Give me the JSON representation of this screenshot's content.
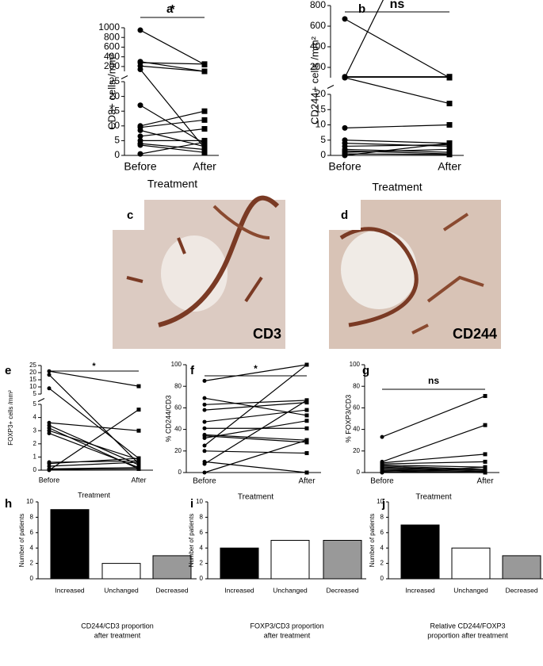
{
  "chart_data": [
    {
      "type": "line",
      "panel": "a",
      "categories": [
        "Before",
        "After"
      ],
      "xlabel": "Treatment",
      "ylabel": "CD3+ cells /mm²",
      "significance": "*",
      "segments": [
        {
          "ylim": [
            0,
            25
          ],
          "yticks": [
            0,
            5,
            10,
            15,
            20,
            25
          ]
        },
        {
          "ylim": [
            100,
            1000
          ],
          "yticks": [
            200,
            400,
            600,
            800,
            1000
          ]
        }
      ],
      "pairs": [
        [
          950,
          240
        ],
        [
          300,
          100
        ],
        [
          280,
          250
        ],
        [
          210,
          100
        ],
        [
          140,
          2.5
        ],
        [
          17,
          4
        ],
        [
          10,
          15
        ],
        [
          9.5,
          12
        ],
        [
          8.5,
          3
        ],
        [
          6.5,
          9
        ],
        [
          5,
          5
        ],
        [
          4,
          2
        ],
        [
          3.5,
          1
        ],
        [
          0.5,
          4.5
        ]
      ]
    },
    {
      "type": "line",
      "panel": "b",
      "categories": [
        "Before",
        "After"
      ],
      "xlabel": "Treatment",
      "ylabel": "CD244+ cells /mm²",
      "significance": "ns",
      "segments": [
        {
          "ylim": [
            0,
            20
          ],
          "yticks": [
            0,
            5,
            10,
            15,
            20
          ]
        },
        {
          "ylim": [
            100,
            800
          ],
          "yticks": [
            200,
            400,
            600,
            800
          ]
        }
      ],
      "pairs": [
        [
          670,
          100
        ],
        [
          110,
          110
        ],
        [
          105,
          105
        ],
        [
          100,
          95
        ],
        [
          100,
          17
        ],
        [
          9,
          10
        ],
        [
          5,
          4
        ],
        [
          4,
          3
        ],
        [
          3,
          3.5
        ],
        [
          2,
          1
        ],
        [
          1.5,
          0.5
        ],
        [
          1,
          2
        ],
        [
          0.5,
          0.3
        ],
        [
          0,
          4
        ]
      ]
    },
    {
      "type": "line",
      "panel": "e",
      "categories": [
        "Before",
        "After"
      ],
      "xlabel": "Treatment",
      "ylabel": "FOXP3+ cells /mm²",
      "significance": "*",
      "segments": [
        {
          "ylim": [
            0,
            5
          ],
          "yticks": [
            0,
            1,
            2,
            3,
            4,
            5
          ]
        },
        {
          "ylim": [
            5,
            25
          ],
          "yticks": [
            5,
            10,
            15,
            20,
            25
          ]
        }
      ],
      "pairs": [
        [
          21,
          10.5
        ],
        [
          18.5,
          0.5
        ],
        [
          9,
          0.9
        ],
        [
          3.6,
          3.0
        ],
        [
          3.4,
          0.4
        ],
        [
          3.2,
          0.1
        ],
        [
          3.0,
          0.8
        ],
        [
          2.8,
          0.2
        ],
        [
          0.6,
          0.7
        ],
        [
          0.5,
          0.9
        ],
        [
          0.3,
          0.6
        ],
        [
          0.1,
          0.2
        ],
        [
          0.05,
          0.1
        ],
        [
          0,
          4.6
        ]
      ]
    },
    {
      "type": "line",
      "panel": "f",
      "categories": [
        "Before",
        "After"
      ],
      "xlabel": "Treatment",
      "ylabel": "% CD244/CD3",
      "significance": "*",
      "segments": [
        {
          "ylim": [
            0,
            100
          ],
          "yticks": [
            0,
            20,
            40,
            60,
            80,
            100
          ]
        }
      ],
      "pairs": [
        [
          85,
          100
        ],
        [
          69,
          53
        ],
        [
          63,
          67
        ],
        [
          58,
          65
        ],
        [
          47,
          58
        ],
        [
          41,
          41
        ],
        [
          35,
          30
        ],
        [
          34,
          28
        ],
        [
          32,
          48
        ],
        [
          25,
          100
        ],
        [
          20,
          18
        ],
        [
          10,
          0
        ],
        [
          8,
          67
        ],
        [
          0,
          30
        ]
      ]
    },
    {
      "type": "line",
      "panel": "g",
      "categories": [
        "Before",
        "After"
      ],
      "xlabel": "Treatment",
      "ylabel": "% FOXP3/CD3",
      "significance": "ns",
      "segments": [
        {
          "ylim": [
            0,
            100
          ],
          "yticks": [
            0,
            20,
            40,
            60,
            80,
            100
          ]
        }
      ],
      "pairs": [
        [
          33,
          71
        ],
        [
          10,
          44
        ],
        [
          9,
          17
        ],
        [
          8,
          10
        ],
        [
          7,
          5
        ],
        [
          6,
          3
        ],
        [
          5,
          2
        ],
        [
          4,
          2
        ],
        [
          3,
          1
        ],
        [
          2,
          1
        ],
        [
          1,
          0
        ],
        [
          0.5,
          0
        ],
        [
          0,
          5
        ],
        [
          0,
          0
        ]
      ]
    },
    {
      "type": "bar",
      "panel": "h",
      "categories": [
        "Increased",
        "Unchanged",
        "Decreased"
      ],
      "values": [
        9,
        2,
        3
      ],
      "colors": [
        "#000000",
        "#ffffff",
        "#999999"
      ],
      "ylabel": "Number of patients",
      "xlabel": [
        "CD244/CD3 proportion",
        "after treatment"
      ],
      "ylim": [
        0,
        10
      ],
      "yticks": [
        0,
        2,
        4,
        6,
        8,
        10
      ]
    },
    {
      "type": "bar",
      "panel": "i",
      "categories": [
        "Increased",
        "Unchanged",
        "Decreased"
      ],
      "values": [
        4,
        5,
        5
      ],
      "colors": [
        "#000000",
        "#ffffff",
        "#999999"
      ],
      "ylabel": "Number of patients",
      "xlabel": [
        "FOXP3/CD3 proportion",
        "after treatment"
      ],
      "ylim": [
        0,
        10
      ],
      "yticks": [
        0,
        2,
        4,
        6,
        8,
        10
      ]
    },
    {
      "type": "bar",
      "panel": "j",
      "categories": [
        "Increased",
        "Unchanged",
        "Decreased"
      ],
      "values": [
        7,
        4,
        3
      ],
      "colors": [
        "#000000",
        "#ffffff",
        "#999999"
      ],
      "ylabel": "Number of patients",
      "xlabel": [
        "Relative CD244/FOXP3",
        "proportion after treatment"
      ],
      "ylim": [
        0,
        10
      ],
      "yticks": [
        0,
        2,
        4,
        6,
        8,
        10
      ]
    }
  ],
  "images": [
    {
      "panel": "c",
      "label": "CD3"
    },
    {
      "panel": "d",
      "label": "CD244"
    }
  ]
}
